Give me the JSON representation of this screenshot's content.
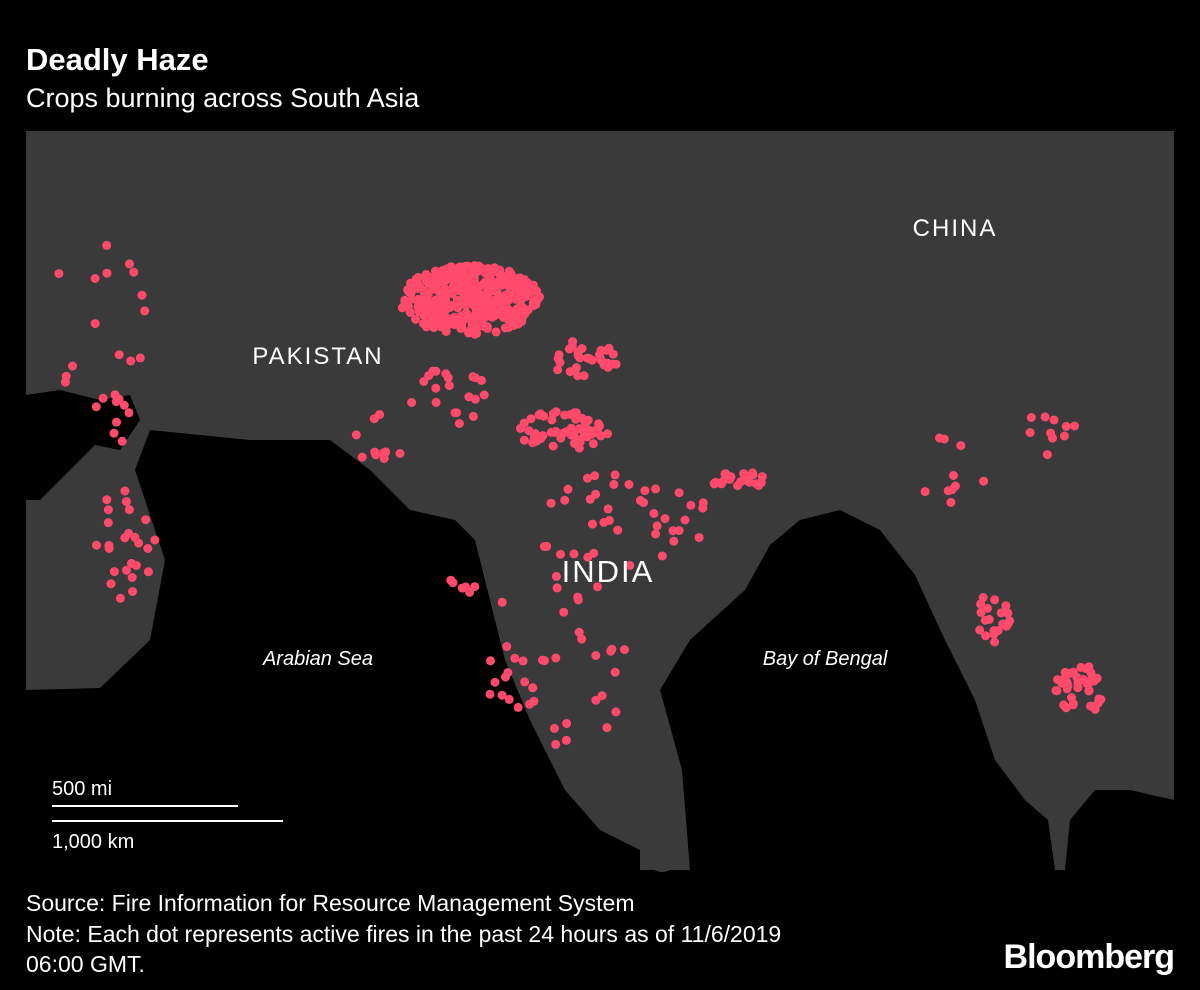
{
  "header": {
    "title": "Deadly Haze",
    "subtitle": "Crops burning across South Asia"
  },
  "map": {
    "labels": {
      "china": "CHINA",
      "pakistan": "PAKISTAN",
      "india": "INDIA",
      "arabian_sea": "Arabian Sea",
      "bay_of_bengal": "Bay of Bengal"
    },
    "scale": {
      "miles": "500 mi",
      "km": "1,000 km"
    }
  },
  "footer": {
    "source": "Source: Fire Information for Resource Management System",
    "note": "Note: Each dot represents active fires in the past 24 hours as of 11/6/2019",
    "note_end": "06:00 GMT.",
    "brand": "Bloomberg"
  }
}
